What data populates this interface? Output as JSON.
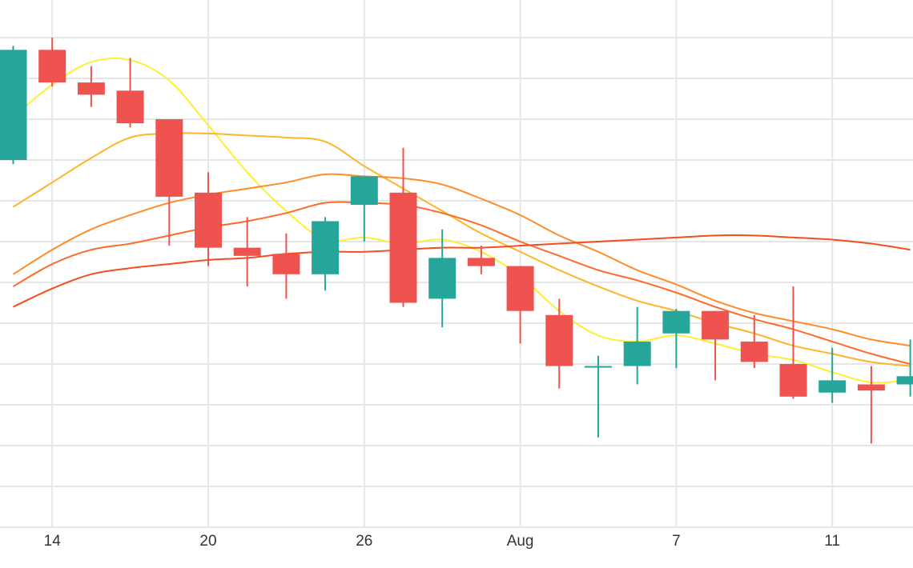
{
  "chart_data": {
    "type": "candlestick",
    "title": "",
    "xlabel": "",
    "ylabel": "",
    "x_tick_labels": [
      {
        "index": 1,
        "label": "14"
      },
      {
        "index": 5,
        "label": "20"
      },
      {
        "index": 9,
        "label": "26"
      },
      {
        "index": 13,
        "label": "Aug"
      },
      {
        "index": 17,
        "label": "7"
      },
      {
        "index": 21,
        "label": "11"
      }
    ],
    "ylim": [
      0,
      13
    ],
    "grid": true,
    "colors": {
      "up": "#26a69a",
      "down": "#ef5350"
    },
    "candles": [
      {
        "open": 9.0,
        "high": 11.8,
        "low": 8.9,
        "close": 11.7
      },
      {
        "open": 11.7,
        "high": 12.0,
        "low": 10.8,
        "close": 10.9
      },
      {
        "open": 10.9,
        "high": 11.3,
        "low": 10.3,
        "close": 10.6
      },
      {
        "open": 10.7,
        "high": 11.5,
        "low": 9.8,
        "close": 9.9
      },
      {
        "open": 10.0,
        "high": 10.0,
        "low": 6.9,
        "close": 8.1
      },
      {
        "open": 8.2,
        "high": 8.7,
        "low": 6.4,
        "close": 6.85
      },
      {
        "open": 6.85,
        "high": 7.6,
        "low": 5.9,
        "close": 6.65
      },
      {
        "open": 6.7,
        "high": 7.2,
        "low": 5.6,
        "close": 6.2
      },
      {
        "open": 6.2,
        "high": 7.6,
        "low": 5.8,
        "close": 7.5
      },
      {
        "open": 7.9,
        "high": 8.6,
        "low": 7.0,
        "close": 8.6
      },
      {
        "open": 8.2,
        "high": 9.3,
        "low": 5.4,
        "close": 5.5
      },
      {
        "open": 5.6,
        "high": 7.3,
        "low": 4.9,
        "close": 6.6
      },
      {
        "open": 6.6,
        "high": 6.9,
        "low": 6.2,
        "close": 6.4
      },
      {
        "open": 6.4,
        "high": 6.4,
        "low": 4.5,
        "close": 5.3
      },
      {
        "open": 5.2,
        "high": 5.6,
        "low": 3.4,
        "close": 3.95
      },
      {
        "open": 3.95,
        "high": 4.2,
        "low": 2.2,
        "close": 3.95
      },
      {
        "open": 3.95,
        "high": 5.4,
        "low": 3.5,
        "close": 4.55
      },
      {
        "open": 4.75,
        "high": 5.35,
        "low": 3.9,
        "close": 5.3
      },
      {
        "open": 5.3,
        "high": 5.3,
        "low": 3.6,
        "close": 4.6
      },
      {
        "open": 4.55,
        "high": 5.2,
        "low": 3.9,
        "close": 4.05
      },
      {
        "open": 4.0,
        "high": 5.9,
        "low": 3.15,
        "close": 3.2
      },
      {
        "open": 3.3,
        "high": 4.4,
        "low": 3.05,
        "close": 3.6
      },
      {
        "open": 3.5,
        "high": 3.95,
        "low": 2.05,
        "close": 3.35
      },
      {
        "open": 3.5,
        "high": 4.6,
        "low": 3.2,
        "close": 3.7
      }
    ],
    "series": [
      {
        "type": "line",
        "color": "#ffee33",
        "values": [
          10.05,
          10.85,
          11.4,
          11.45,
          10.95,
          9.85,
          8.7,
          7.75,
          7.05,
          7.1,
          6.95,
          7.05,
          6.75,
          6.15,
          5.3,
          4.7,
          4.55,
          4.7,
          4.5,
          4.25,
          4.1,
          3.8,
          3.55,
          3.6
        ]
      },
      {
        "type": "line",
        "color": "#ffb42a",
        "values": [
          7.85,
          8.45,
          9.05,
          9.55,
          9.65,
          9.65,
          9.6,
          9.55,
          9.45,
          8.85,
          8.3,
          7.75,
          7.2,
          6.75,
          6.3,
          5.9,
          5.55,
          5.3,
          5.0,
          4.75,
          4.45,
          4.25,
          4.05,
          3.95
        ]
      },
      {
        "type": "line",
        "color": "#ff8c28",
        "values": [
          6.2,
          6.8,
          7.3,
          7.65,
          7.95,
          8.15,
          8.3,
          8.45,
          8.65,
          8.6,
          8.55,
          8.4,
          8.05,
          7.65,
          7.15,
          6.75,
          6.3,
          5.95,
          5.55,
          5.25,
          5.05,
          4.85,
          4.6,
          4.45
        ]
      },
      {
        "type": "line",
        "color": "#ff6a28",
        "values": [
          5.9,
          6.45,
          6.8,
          6.95,
          7.15,
          7.35,
          7.5,
          7.7,
          7.95,
          7.95,
          7.9,
          7.7,
          7.4,
          7.0,
          6.65,
          6.3,
          6.05,
          5.75,
          5.4,
          5.1,
          4.85,
          4.55,
          4.25,
          4.0
        ]
      },
      {
        "type": "line",
        "color": "#f24e1e",
        "values": [
          5.4,
          5.85,
          6.2,
          6.35,
          6.45,
          6.55,
          6.6,
          6.7,
          6.75,
          6.75,
          6.8,
          6.85,
          6.85,
          6.9,
          6.95,
          7.0,
          7.05,
          7.1,
          7.15,
          7.15,
          7.1,
          7.05,
          6.95,
          6.8
        ]
      }
    ]
  }
}
